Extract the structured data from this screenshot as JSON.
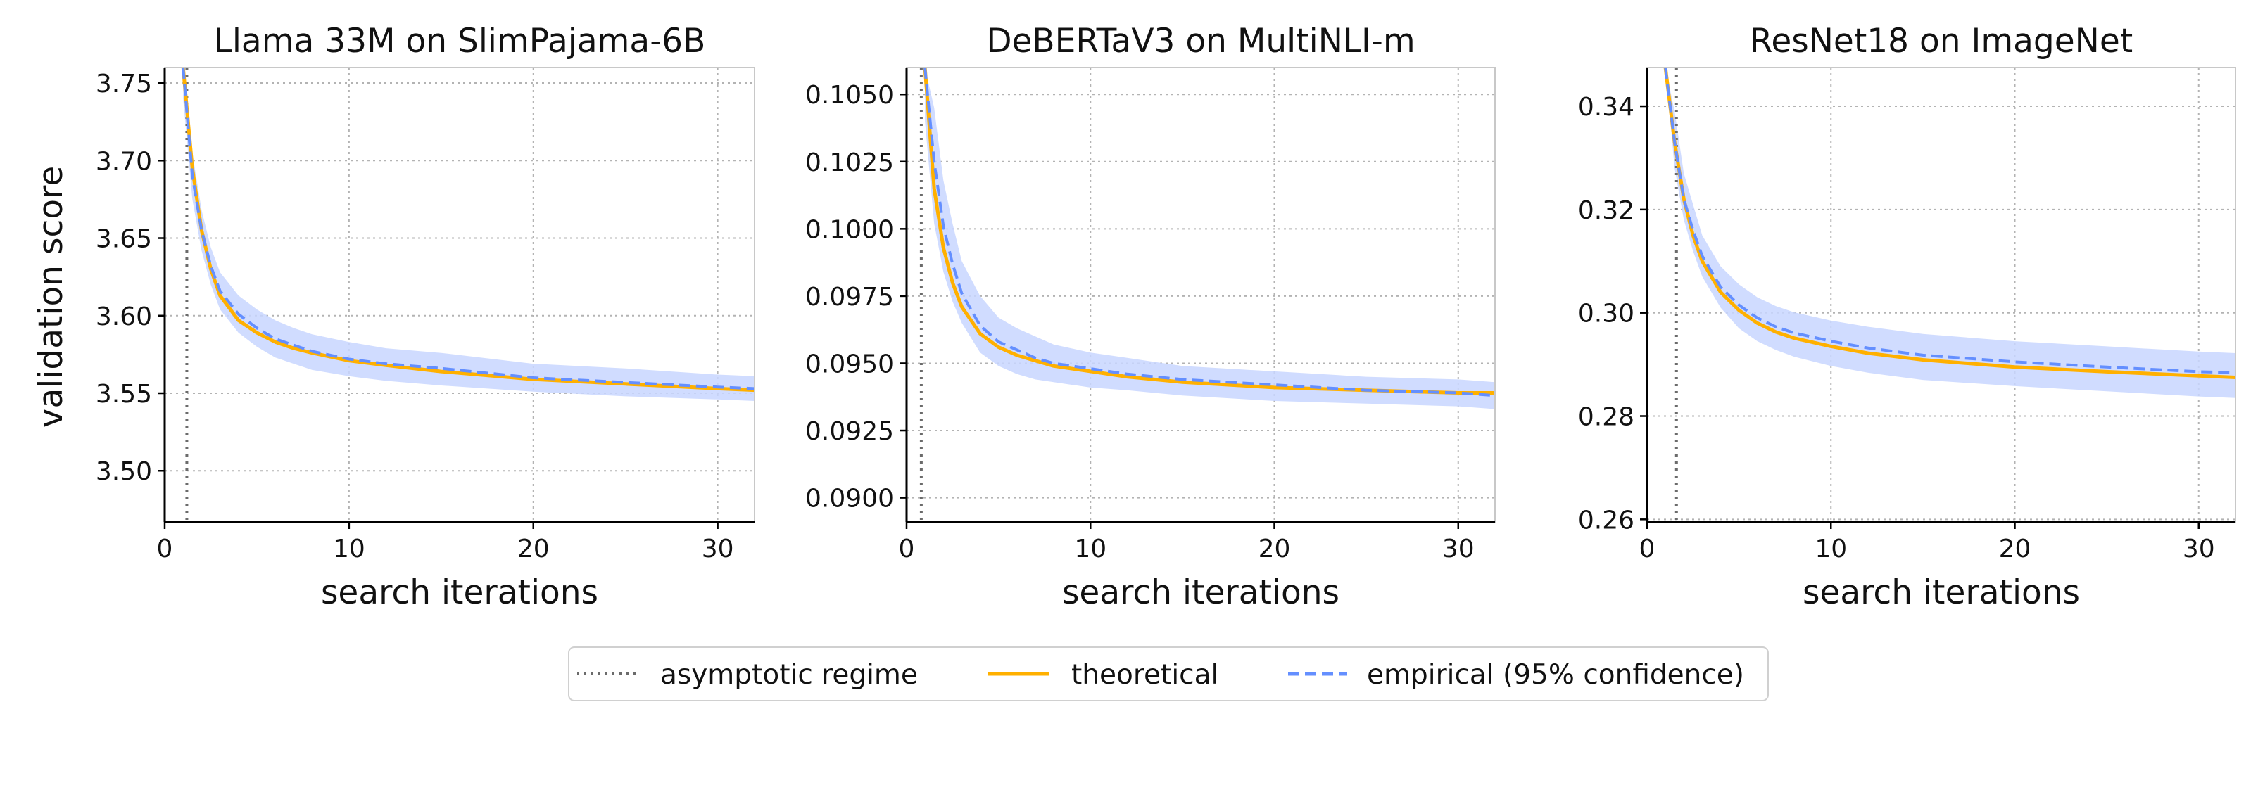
{
  "figure": {
    "shared_ylabel": "validation score",
    "colors": {
      "theoretical": "#ffb000",
      "empirical": "#648fff",
      "band": "#c8d6ff",
      "asymptotic": "#6b6b6b"
    }
  },
  "legend": {
    "items": [
      {
        "label": "asymptotic regime",
        "style": "dotted",
        "color": "#6b6b6b"
      },
      {
        "label": "theoretical",
        "style": "solid",
        "color": "#ffb000"
      },
      {
        "label": "empirical (95% confidence)",
        "style": "dashed",
        "color": "#648fff"
      }
    ]
  },
  "chart_data": [
    {
      "type": "line",
      "title": "Llama 33M on SlimPajama-6B",
      "xlabel": "search iterations",
      "ylabel": "validation score",
      "xlim": [
        0,
        32
      ],
      "ylim": [
        3.467,
        3.76
      ],
      "xticks": [
        0,
        10,
        20,
        30
      ],
      "yticks": [
        3.5,
        3.55,
        3.6,
        3.65,
        3.7,
        3.75
      ],
      "ytick_labels": [
        "3.50",
        "3.55",
        "3.60",
        "3.65",
        "3.70",
        "3.75"
      ],
      "grid": true,
      "asymptotic_regime_x": 1.2,
      "x": [
        1,
        1.5,
        2,
        2.5,
        3,
        4,
        5,
        6,
        7,
        8,
        10,
        12,
        15,
        20,
        25,
        30,
        32
      ],
      "series": [
        {
          "name": "theoretical",
          "style": "solid",
          "values": [
            3.76,
            3.695,
            3.655,
            3.63,
            3.613,
            3.597,
            3.589,
            3.583,
            3.579,
            3.576,
            3.571,
            3.568,
            3.564,
            3.559,
            3.556,
            3.553,
            3.552
          ]
        },
        {
          "name": "empirical (95% confidence)",
          "style": "dashed",
          "values": [
            3.76,
            3.69,
            3.655,
            3.632,
            3.616,
            3.601,
            3.592,
            3.585,
            3.581,
            3.577,
            3.572,
            3.569,
            3.566,
            3.56,
            3.557,
            3.554,
            3.553
          ],
          "lower": [
            3.74,
            3.675,
            3.642,
            3.62,
            3.604,
            3.589,
            3.58,
            3.573,
            3.569,
            3.565,
            3.561,
            3.558,
            3.555,
            3.551,
            3.548,
            3.546,
            3.545
          ],
          "upper": [
            3.76,
            3.705,
            3.668,
            3.644,
            3.628,
            3.613,
            3.604,
            3.597,
            3.592,
            3.588,
            3.583,
            3.579,
            3.576,
            3.569,
            3.566,
            3.562,
            3.561
          ]
        }
      ]
    },
    {
      "type": "line",
      "title": "DeBERTaV3 on MultiNLI-m",
      "xlabel": "search iterations",
      "ylabel": "",
      "xlim": [
        0,
        32
      ],
      "ylim": [
        0.0891,
        0.106
      ],
      "xticks": [
        0,
        10,
        20,
        30
      ],
      "yticks": [
        0.09,
        0.0925,
        0.095,
        0.0975,
        0.1,
        0.1025,
        0.105
      ],
      "ytick_labels": [
        "0.0900",
        "0.0925",
        "0.0950",
        "0.0975",
        "0.1000",
        "0.1025",
        "0.1050"
      ],
      "grid": true,
      "asymptotic_regime_x": 0.8,
      "x": [
        1,
        1.5,
        2,
        2.5,
        3,
        4,
        5,
        6,
        7,
        8,
        10,
        12,
        15,
        20,
        25,
        30,
        32
      ],
      "series": [
        {
          "name": "theoretical",
          "style": "solid",
          "values": [
            0.106,
            0.1015,
            0.0993,
            0.098,
            0.0971,
            0.0961,
            0.0956,
            0.0953,
            0.0951,
            0.0949,
            0.0947,
            0.0945,
            0.0943,
            0.0941,
            0.094,
            0.0939,
            0.0939
          ]
        },
        {
          "name": "empirical (95% confidence)",
          "style": "dashed",
          "values": [
            0.106,
            0.1025,
            0.1001,
            0.0987,
            0.0976,
            0.0964,
            0.0958,
            0.0955,
            0.0952,
            0.095,
            0.0948,
            0.0946,
            0.0944,
            0.0942,
            0.094,
            0.0939,
            0.0938
          ],
          "lower": [
            0.104,
            0.1002,
            0.0984,
            0.0973,
            0.0965,
            0.0954,
            0.0949,
            0.0946,
            0.0944,
            0.0943,
            0.0941,
            0.094,
            0.0938,
            0.0936,
            0.0935,
            0.0934,
            0.0933
          ],
          "upper": [
            0.106,
            0.1045,
            0.1018,
            0.1002,
            0.0988,
            0.0975,
            0.0967,
            0.0963,
            0.096,
            0.0957,
            0.0954,
            0.0952,
            0.0949,
            0.0947,
            0.0945,
            0.0944,
            0.0943
          ]
        }
      ]
    },
    {
      "type": "line",
      "title": "ResNet18 on ImageNet",
      "xlabel": "search iterations",
      "ylabel": "",
      "xlim": [
        0,
        32
      ],
      "ylim": [
        0.2595,
        0.3475
      ],
      "xticks": [
        0,
        10,
        20,
        30
      ],
      "yticks": [
        0.26,
        0.28,
        0.3,
        0.32,
        0.34
      ],
      "ytick_labels": [
        "0.26",
        "0.28",
        "0.30",
        "0.32",
        "0.34"
      ],
      "grid": true,
      "asymptotic_regime_x": 1.6,
      "x": [
        1,
        1.5,
        2,
        2.5,
        3,
        4,
        5,
        6,
        7,
        8,
        10,
        12,
        15,
        20,
        25,
        30,
        32
      ],
      "series": [
        {
          "name": "theoretical",
          "style": "solid",
          "values": [
            0.3475,
            0.333,
            0.322,
            0.315,
            0.31,
            0.304,
            0.3005,
            0.298,
            0.2963,
            0.2951,
            0.2935,
            0.2922,
            0.2909,
            0.2895,
            0.2886,
            0.2878,
            0.2875
          ]
        },
        {
          "name": "empirical (95% confidence)",
          "style": "dashed",
          "values": [
            0.3475,
            0.333,
            0.322,
            0.316,
            0.311,
            0.305,
            0.3015,
            0.299,
            0.2973,
            0.2961,
            0.2945,
            0.2932,
            0.2918,
            0.2905,
            0.2895,
            0.2886,
            0.2884
          ],
          "lower": [
            0.3475,
            0.328,
            0.318,
            0.312,
            0.307,
            0.301,
            0.297,
            0.2945,
            0.2928,
            0.2915,
            0.2897,
            0.2884,
            0.287,
            0.2858,
            0.2848,
            0.2838,
            0.2835
          ],
          "upper": [
            0.3475,
            0.339,
            0.327,
            0.321,
            0.315,
            0.309,
            0.3055,
            0.303,
            0.3013,
            0.3001,
            0.2985,
            0.2973,
            0.2959,
            0.2945,
            0.2935,
            0.2925,
            0.2922
          ]
        }
      ]
    }
  ]
}
